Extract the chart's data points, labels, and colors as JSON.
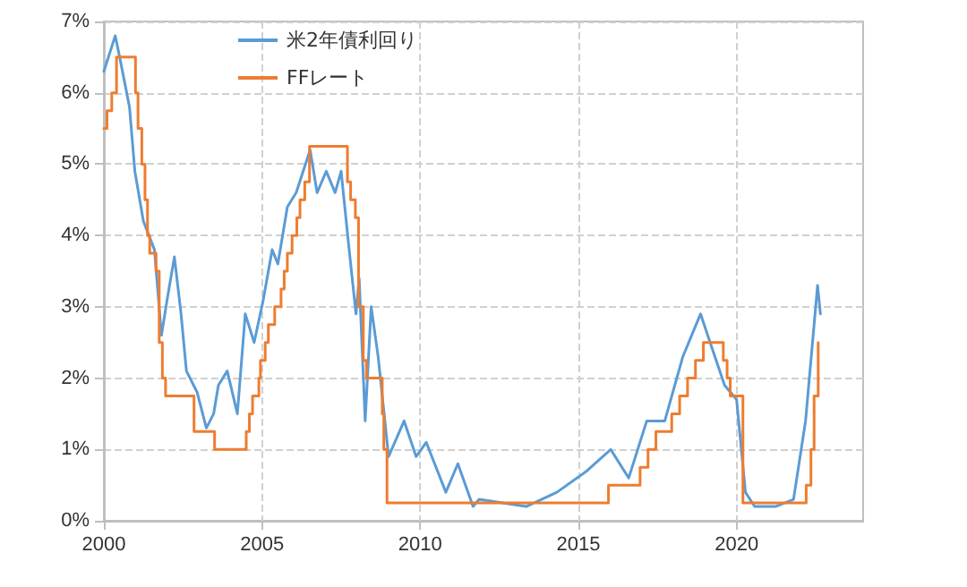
{
  "chart_data": {
    "type": "line",
    "legend": "top left",
    "grid": true,
    "marker": "none",
    "line_style": "solid",
    "xlim": [
      2000,
      2024
    ],
    "xticks": [
      2000,
      2005,
      2010,
      2015,
      2020
    ],
    "ylim": [
      0,
      7
    ],
    "yticks": [
      {
        "value": 0,
        "label": "0%"
      },
      {
        "value": 1,
        "label": "1%"
      },
      {
        "value": 2,
        "label": "2%"
      },
      {
        "value": 3,
        "label": "3%"
      },
      {
        "value": 4,
        "label": "4%"
      },
      {
        "value": 5,
        "label": "5%"
      },
      {
        "value": 6,
        "label": "6%"
      },
      {
        "value": 7,
        "label": "7%"
      }
    ],
    "series": [
      {
        "name": "米2年債利回り",
        "color": "#5b9bd5",
        "x": [
          2000.0,
          2000.36,
          2000.5,
          2000.81,
          2000.98,
          2001.25,
          2001.6,
          2001.82,
          2002.0,
          2002.23,
          2002.44,
          2002.61,
          2002.95,
          2003.24,
          2003.47,
          2003.62,
          2003.9,
          2004.22,
          2004.47,
          2004.75,
          2005.04,
          2005.32,
          2005.5,
          2005.8,
          2006.08,
          2006.52,
          2006.74,
          2007.03,
          2007.31,
          2007.5,
          2007.73,
          2007.97,
          2008.07,
          2008.26,
          2008.45,
          2008.67,
          2009.0,
          2009.49,
          2009.87,
          2010.19,
          2010.81,
          2011.19,
          2011.67,
          2011.86,
          2013.35,
          2014.32,
          2015.27,
          2016.02,
          2016.59,
          2017.16,
          2017.73,
          2018.3,
          2018.86,
          2019.24,
          2019.62,
          2020.0,
          2020.28,
          2020.57,
          2021.23,
          2021.8,
          2022.18,
          2022.42,
          2022.56,
          2022.65
        ],
        "values": [
          6.3,
          6.8,
          6.5,
          5.8,
          4.9,
          4.2,
          3.8,
          2.6,
          3.1,
          3.7,
          2.9,
          2.1,
          1.8,
          1.3,
          1.5,
          1.9,
          2.1,
          1.5,
          2.9,
          2.5,
          3.1,
          3.8,
          3.6,
          4.4,
          4.6,
          5.2,
          4.6,
          4.9,
          4.6,
          4.9,
          3.9,
          2.9,
          3.4,
          1.4,
          3.0,
          2.3,
          0.9,
          1.4,
          0.9,
          1.1,
          0.4,
          0.8,
          0.2,
          0.3,
          0.2,
          0.4,
          0.7,
          1.0,
          0.6,
          1.4,
          1.4,
          2.3,
          2.9,
          2.4,
          1.9,
          1.7,
          0.4,
          0.2,
          0.2,
          0.3,
          1.4,
          2.6,
          3.3,
          2.9
        ]
      },
      {
        "name": "FFレート",
        "color": "#ed7d31",
        "type": "step",
        "x": [
          2000.0,
          2000.1,
          2000.25,
          2000.4,
          2001.0,
          2001.08,
          2001.2,
          2001.3,
          2001.38,
          2001.45,
          2001.65,
          2001.75,
          2001.85,
          2001.95,
          2002.85,
          2003.5,
          2004.5,
          2004.6,
          2004.7,
          2004.9,
          2004.95,
          2005.1,
          2005.2,
          2005.4,
          2005.6,
          2005.7,
          2005.8,
          2005.95,
          2006.1,
          2006.2,
          2006.35,
          2006.5,
          2007.7,
          2007.8,
          2007.95,
          2008.05,
          2008.2,
          2008.3,
          2008.8,
          2008.85,
          2008.95,
          2015.95,
          2016.95,
          2017.2,
          2017.45,
          2017.95,
          2018.2,
          2018.45,
          2018.7,
          2018.95,
          2019.58,
          2019.7,
          2019.8,
          2020.2,
          2022.2,
          2022.35,
          2022.45,
          2022.58
        ],
        "values": [
          5.5,
          5.75,
          6.0,
          6.5,
          6.0,
          5.5,
          5.0,
          4.5,
          4.0,
          3.75,
          3.5,
          2.5,
          2.0,
          1.75,
          1.25,
          1.0,
          1.25,
          1.5,
          1.75,
          2.0,
          2.25,
          2.5,
          2.75,
          3.0,
          3.25,
          3.5,
          3.75,
          4.0,
          4.25,
          4.5,
          4.75,
          5.25,
          4.75,
          4.5,
          4.25,
          3.0,
          2.25,
          2.0,
          1.5,
          1.0,
          0.25,
          0.5,
          0.75,
          1.0,
          1.25,
          1.5,
          1.75,
          2.0,
          2.25,
          2.5,
          2.25,
          2.0,
          1.75,
          0.25,
          0.5,
          1.0,
          1.75,
          2.5
        ]
      }
    ]
  }
}
